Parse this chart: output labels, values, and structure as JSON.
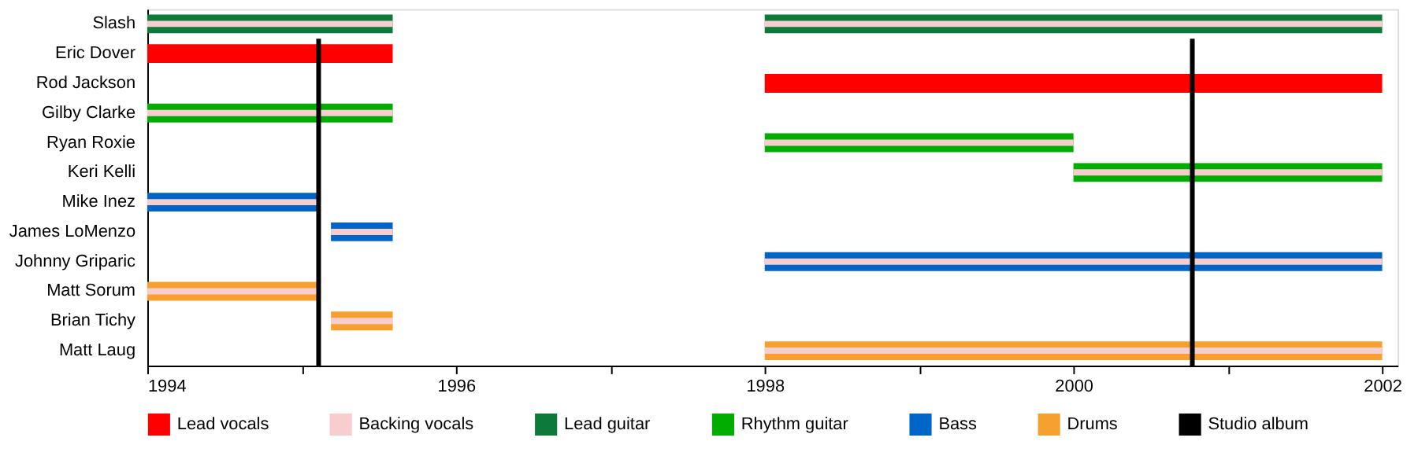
{
  "chart_data": {
    "type": "bar",
    "orientation": "horizontal",
    "categories": [
      "Slash",
      "Eric Dover",
      "Rod Jackson",
      "Gilby Clarke",
      "Ryan Roxie",
      "Keri Kelli",
      "Mike Inez",
      "James LoMenzo",
      "Johnny Griparic",
      "Matt Sorum",
      "Brian Tichy",
      "Matt Laug"
    ],
    "series": [
      {
        "name": "Lead vocals",
        "color": "#ff0000",
        "base": [
          null,
          1994,
          1998,
          null,
          null,
          null,
          null,
          null,
          null,
          null,
          null,
          null
        ],
        "values": [
          null,
          1.59,
          4,
          null,
          null,
          null,
          null,
          null,
          null,
          null,
          null,
          null
        ]
      },
      {
        "name": "Backing vocals",
        "color": "#f8cdcd",
        "base": [
          1994,
          null,
          null,
          1994,
          1998,
          2000,
          1994,
          1995.19,
          1998,
          1994,
          1995.19,
          1998
        ],
        "values": [
          1.59,
          null,
          null,
          1.59,
          2,
          2,
          1.11,
          0.4,
          4,
          1.11,
          0.4,
          4
        ]
      },
      {
        "name": "Lead guitar",
        "color": "#0e7a3a",
        "base": [
          1994,
          null,
          null,
          null,
          null,
          null,
          null,
          null,
          null,
          null,
          null,
          null
        ],
        "values": [
          1.59,
          null,
          null,
          null,
          null,
          null,
          null,
          null,
          null,
          null,
          null,
          null
        ]
      },
      {
        "name": "Rhythm guitar",
        "color": "#00ad00",
        "base": [
          null,
          null,
          null,
          1994,
          1998,
          2000,
          null,
          null,
          null,
          null,
          null,
          null
        ],
        "values": [
          null,
          null,
          null,
          1.59,
          2,
          2,
          null,
          null,
          null,
          null,
          null,
          null
        ]
      },
      {
        "name": "Bass",
        "color": "#0065c8",
        "base": [
          null,
          null,
          null,
          null,
          null,
          null,
          1994,
          1995.19,
          1998,
          null,
          null,
          null
        ],
        "values": [
          null,
          null,
          null,
          null,
          null,
          null,
          1.11,
          0.4,
          4,
          null,
          null,
          null
        ]
      },
      {
        "name": "Drums",
        "color": "#f5a030",
        "base": [
          null,
          null,
          null,
          null,
          null,
          null,
          null,
          null,
          null,
          1994,
          1995.19,
          1998
        ],
        "values": [
          null,
          null,
          null,
          null,
          null,
          null,
          null,
          null,
          null,
          1.11,
          0.4,
          4
        ]
      },
      {
        "color": "#f8cdcd",
        "base": [
          1998,
          null,
          null,
          null,
          null,
          null,
          null,
          null,
          null,
          null,
          null,
          null
        ],
        "values": [
          4,
          null,
          null,
          null,
          null,
          null,
          null,
          null,
          null,
          null,
          null,
          null
        ]
      },
      {
        "color": "#0e7a3a",
        "base": [
          1998,
          null,
          null,
          null,
          null,
          null,
          null,
          null,
          null,
          null,
          null,
          null
        ],
        "values": [
          4,
          null,
          null,
          null,
          null,
          null,
          null,
          null,
          null,
          null,
          null,
          null
        ]
      }
    ],
    "ref_lines": [
      {
        "axis": "x",
        "value": 1995.11,
        "label": "Studio album",
        "color": "#000000"
      },
      {
        "axis": "x",
        "value": 2000.77,
        "color": "#000000"
      }
    ],
    "xlim": [
      1994,
      2002.1
    ],
    "xticks": [
      1994,
      {
        "value": 1995,
        "label": null
      },
      1996,
      {
        "value": 1997,
        "label": null
      },
      1998,
      {
        "value": 1999,
        "label": null
      },
      2000,
      {
        "value": 2001,
        "label": null
      },
      2002
    ],
    "grid": false,
    "legend": "bottom"
  }
}
